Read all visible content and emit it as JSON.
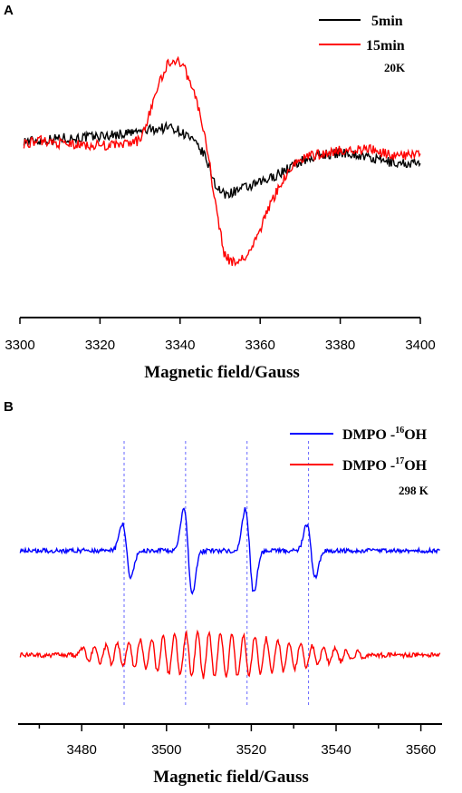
{
  "chart_data": [
    {
      "panel": "A",
      "type": "line",
      "xlabel": "Magnetic field/Gauss",
      "xlim": [
        3300,
        3400
      ],
      "xticks": [
        "3300",
        "3320",
        "3340",
        "3360",
        "3380",
        "3400"
      ],
      "annotation": "20K",
      "series": [
        {
          "name": "5min",
          "color": "#000000",
          "x": [
            3301,
            3305,
            3310,
            3315,
            3320,
            3325,
            3330,
            3334,
            3338,
            3342,
            3346,
            3349,
            3351,
            3354,
            3358,
            3362,
            3366,
            3370,
            3376,
            3382,
            3388,
            3394,
            3400
          ],
          "y": [
            0.05,
            0.05,
            0.08,
            0.08,
            0.1,
            0.12,
            0.15,
            0.18,
            0.2,
            0.1,
            -0.1,
            -0.45,
            -0.55,
            -0.5,
            -0.45,
            -0.38,
            -0.28,
            -0.18,
            -0.1,
            -0.08,
            -0.15,
            -0.2,
            -0.2
          ]
        },
        {
          "name": "15min",
          "color": "#ff0000",
          "x": [
            3301,
            3305,
            3310,
            3315,
            3320,
            3325,
            3330,
            3332,
            3334,
            3337,
            3339,
            3341,
            3343,
            3345,
            3347,
            3349,
            3351,
            3353,
            3356,
            3359,
            3362,
            3366,
            3370,
            3376,
            3382,
            3388,
            3394,
            3400
          ],
          "y": [
            0.02,
            0.05,
            0.02,
            0.0,
            0.0,
            0.0,
            0.05,
            0.3,
            0.6,
            0.9,
            0.95,
            0.85,
            0.65,
            0.35,
            -0.1,
            -0.7,
            -1.2,
            -1.3,
            -1.25,
            -1.05,
            -0.7,
            -0.35,
            -0.15,
            -0.08,
            -0.05,
            -0.05,
            -0.12,
            -0.1
          ]
        }
      ]
    },
    {
      "panel": "B",
      "type": "line",
      "xlabel": "Magnetic field/Gauss",
      "xlim": [
        3465,
        3565
      ],
      "xticks": [
        "3480",
        "3500",
        "3520",
        "3540",
        "3560"
      ],
      "annotation": "298 K",
      "reference_lines_x": [
        3490,
        3504.5,
        3519,
        3533.5
      ],
      "series": [
        {
          "name_prefix": "DMPO -",
          "name_sup": "16",
          "name_suffix": "OH",
          "color": "#0000ff"
        },
        {
          "name_prefix": "DMPO -",
          "name_sup": "17",
          "name_suffix": "OH",
          "color": "#ff0000"
        }
      ]
    }
  ]
}
